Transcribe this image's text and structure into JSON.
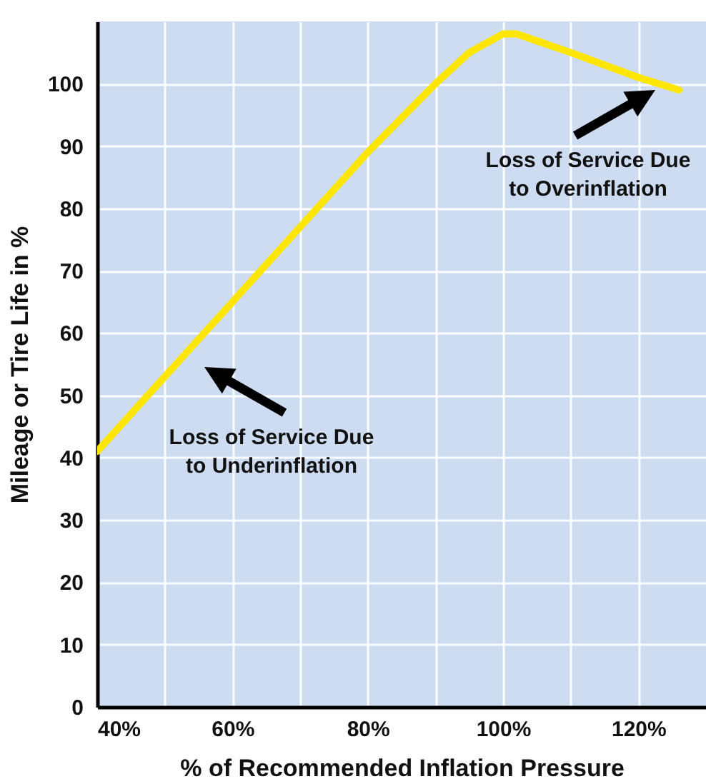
{
  "chart_data": {
    "type": "line",
    "xlabel": "% of Recommended Inflation Pressure",
    "ylabel": "Mileage or Tire Life in %",
    "x": [
      40,
      50,
      60,
      70,
      80,
      90,
      95,
      100,
      102,
      110,
      120,
      126
    ],
    "series": [
      {
        "color": "#ffe600",
        "values": [
          41,
          53,
          65,
          77,
          89,
          100,
          105,
          108,
          108,
          105,
          101,
          99
        ]
      }
    ],
    "xlim": [
      40,
      130
    ],
    "xticks": [
      {
        "value": 40,
        "label": "40%"
      },
      {
        "value": 50,
        "label": null
      },
      {
        "value": 60,
        "label": "60%"
      },
      {
        "value": 70,
        "label": null
      },
      {
        "value": 80,
        "label": "80%"
      },
      {
        "value": 90,
        "label": null
      },
      {
        "value": 100,
        "label": "100%"
      },
      {
        "value": 110,
        "label": null
      },
      {
        "value": 120,
        "label": "120%"
      }
    ],
    "ylim": [
      0,
      110
    ],
    "yticks": [
      0,
      10,
      20,
      30,
      40,
      50,
      60,
      70,
      80,
      90,
      100
    ],
    "grid": true,
    "marker": "none",
    "line_style": "solid",
    "annotations": [
      "Loss of Service Due\nto Underinflation",
      {
        "text": "Loss of Service Due\nto Overinflation",
        "x": 122.5,
        "y": 99
      }
    ]
  }
}
